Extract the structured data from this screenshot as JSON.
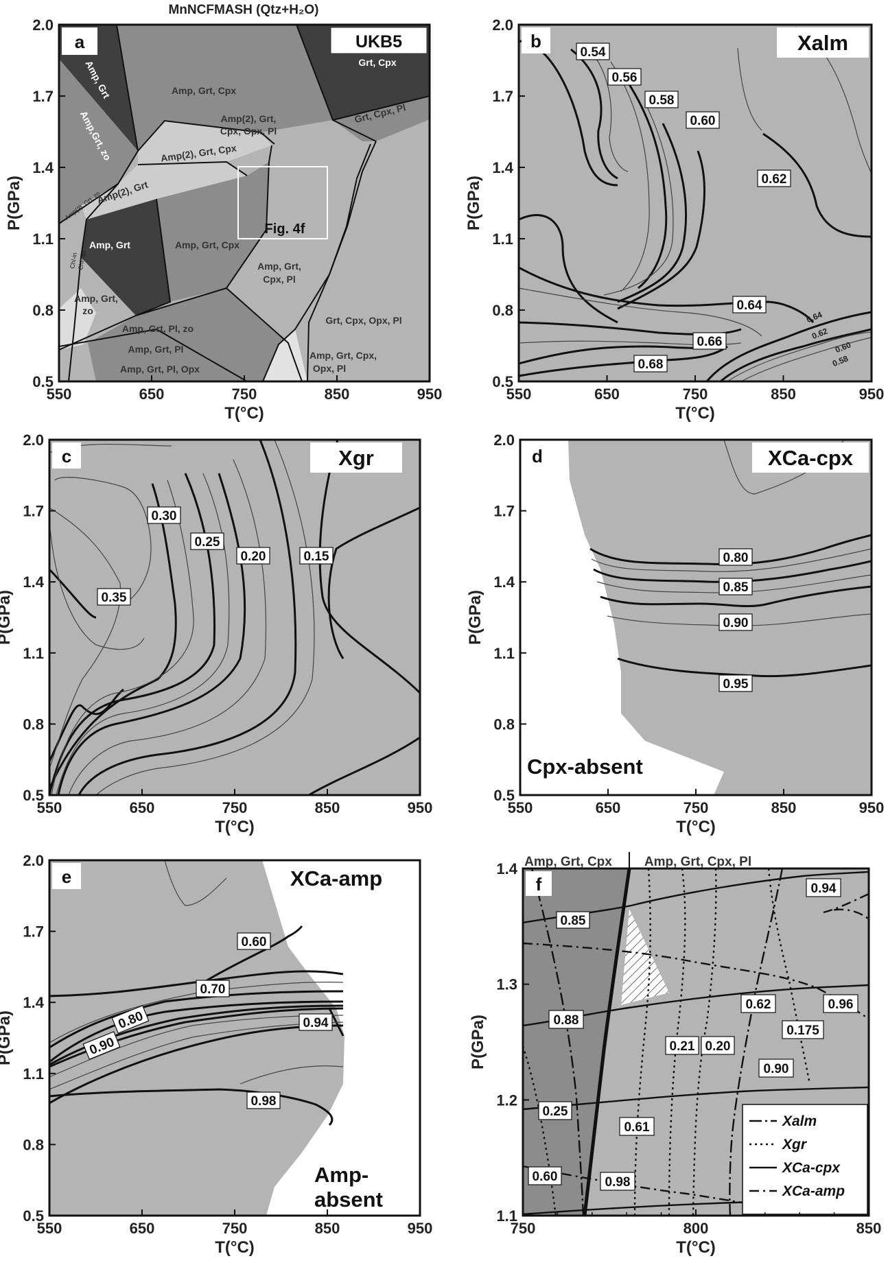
{
  "figure_title": "MnNCFMASH (Qtz+H₂O)",
  "chart_data": [
    {
      "panel": "a",
      "type": "phase diagram",
      "title": "UKB5",
      "xlabel": "T(°C)",
      "ylabel": "P(GPa)",
      "xlim": [
        550,
        950
      ],
      "ylim": [
        0.5,
        2.0
      ],
      "xticks": [
        "550",
        "650",
        "750",
        "850",
        "950"
      ],
      "yticks": [
        "2.0",
        "1.7",
        "1.4",
        "1.1",
        "0.8",
        "0.5"
      ],
      "fields": [
        {
          "label": "Amp, Grt",
          "shade": "dark",
          "lines": [
            "Amp, Grt"
          ]
        },
        {
          "label": "Amp,Grt, zo",
          "shade": "medium",
          "lines": [
            "Amp,Grt, zo"
          ]
        },
        {
          "label": "Amp, Grt, Cpx",
          "shade": "medium",
          "lines": [
            "Amp, Grt, Cpx"
          ]
        },
        {
          "label": "Grt, Cpx",
          "shade": "dark",
          "lines": [
            "Grt, Cpx"
          ]
        },
        {
          "label": "Amp(2), Grt, Cpx, Opx, Pl",
          "shade": "light",
          "lines": [
            "Amp(2), Grt,",
            "Cpx, Opx, Pl"
          ]
        },
        {
          "label": "Grt, Cpx, Pl",
          "shade": "medium",
          "lines": [
            "Grt, Cpx, Pl"
          ]
        },
        {
          "label": "Amp(2), Grt, Cpx",
          "shade": "pale",
          "lines": [
            "Amp(2), Grt, Cpx"
          ]
        },
        {
          "label": "Amp(2), Grt",
          "shade": "pale",
          "lines": [
            "Amp(2), Grt"
          ]
        },
        {
          "label": "Amp(2), Grt, zo",
          "shade": "pale",
          "lines": [
            "Amp(2), Grt, zo"
          ]
        },
        {
          "label": "Amp, Grt",
          "shade": "dark",
          "lines": [
            "Amp, Grt"
          ]
        },
        {
          "label": "Amp, Grt, Cpx",
          "shade": "medium",
          "lines": [
            "Amp, Grt, Cpx"
          ]
        },
        {
          "label": "Amp, Grt, Cpx, Pl",
          "shade": "light",
          "lines": [
            "Amp, Grt,",
            "Cpx, Pl"
          ]
        },
        {
          "label": "Grt, Cpx, Opx, Pl",
          "shade": "light",
          "lines": [
            "Grt, Cpx, Opx, Pl"
          ]
        },
        {
          "label": "Amp, Grt, zo",
          "shade": "light",
          "lines": [
            "Amp, Grt,",
            "zo"
          ]
        },
        {
          "label": "Amp, Grt, Pl, zo",
          "shade": "light",
          "lines": [
            "Amp, Grt, Pl, zo"
          ]
        },
        {
          "label": "Amp, Grt, Pl",
          "shade": "medium",
          "lines": [
            "Amp, Grt, Pl"
          ]
        },
        {
          "label": "Amp, Grt, Pl, Opx",
          "shade": "medium",
          "lines": [
            "Amp, Grt, Pl, Opx"
          ]
        },
        {
          "label": "Amp, Grt, Cpx, Opx, Pl",
          "shade": "pale",
          "lines": [
            "Amp, Grt, Cpx,",
            "Opx, Pl"
          ]
        }
      ],
      "reaction_labels": [
        "Chl-in",
        "Chl-out"
      ],
      "inset_label": "Fig. 4f",
      "inset_region": {
        "T": [
          765,
          860
        ],
        "P": [
          1.12,
          1.51
        ]
      }
    },
    {
      "panel": "b",
      "type": "contour",
      "title": "Xalm",
      "xlabel": "T(°C)",
      "ylabel": "P(GPa)",
      "xlim": [
        550,
        950
      ],
      "ylim": [
        0.5,
        2.0
      ],
      "contour_labels": [
        {
          "value": "0.54",
          "T": 642,
          "P": 1.87
        },
        {
          "value": "0.56",
          "T": 677,
          "P": 1.8
        },
        {
          "value": "0.58",
          "T": 718,
          "P": 1.72
        },
        {
          "value": "0.60",
          "T": 777,
          "P": 1.62
        },
        {
          "value": "0.62",
          "T": 843,
          "P": 1.4
        },
        {
          "value": "0.64",
          "T": 836,
          "P": 0.83
        },
        {
          "value": "0.66",
          "T": 758,
          "P": 0.67
        },
        {
          "value": "0.68",
          "T": 700,
          "P": 0.57
        },
        {
          "value": "0.64",
          "T": 905,
          "P": 0.76
        },
        {
          "value": "0.62",
          "T": 915,
          "P": 0.7
        },
        {
          "value": "0.60",
          "T": 927,
          "P": 0.63
        },
        {
          "value": "0.58",
          "T": 935,
          "P": 0.57
        }
      ]
    },
    {
      "panel": "c",
      "type": "contour",
      "title": "Xgr",
      "xlabel": "T(°C)",
      "ylabel": "P(GPa)",
      "xlim": [
        550,
        950
      ],
      "ylim": [
        0.5,
        2.0
      ],
      "contour_labels": [
        {
          "value": "0.30",
          "T": 676,
          "P": 1.61
        },
        {
          "value": "0.25",
          "T": 717,
          "P": 1.57
        },
        {
          "value": "0.20",
          "T": 770,
          "P": 1.53
        },
        {
          "value": "0.15",
          "T": 840,
          "P": 1.53
        },
        {
          "value": "0.35",
          "T": 615,
          "P": 1.38
        }
      ]
    },
    {
      "panel": "d",
      "type": "contour",
      "title": "XCa-cpx",
      "xlabel": "T(°C)",
      "ylabel": "P(GPa)",
      "xlim": [
        550,
        950
      ],
      "ylim": [
        0.5,
        2.0
      ],
      "absent_region_label": "Cpx-absent",
      "contour_labels": [
        {
          "value": "0.80",
          "T": 817,
          "P": 1.52
        },
        {
          "value": "0.85",
          "T": 817,
          "P": 1.41
        },
        {
          "value": "0.90",
          "T": 817,
          "P": 1.28
        },
        {
          "value": "0.95",
          "T": 817,
          "P": 0.98
        }
      ]
    },
    {
      "panel": "e",
      "type": "contour",
      "title": "XCa-amp",
      "xlabel": "T(°C)",
      "ylabel": "P(GPa)",
      "xlim": [
        550,
        950
      ],
      "ylim": [
        0.5,
        2.0
      ],
      "absent_region_label": [
        "Amp-",
        "absent"
      ],
      "contour_labels": [
        {
          "value": "0.60",
          "T": 770,
          "P": 1.63
        },
        {
          "value": "0.70",
          "T": 728,
          "P": 1.46
        },
        {
          "value": "0.80",
          "T": 646,
          "P": 1.34
        },
        {
          "value": "0.90",
          "T": 593,
          "P": 1.23
        },
        {
          "value": "0.94",
          "T": 847,
          "P": 1.32
        },
        {
          "value": "0.98",
          "T": 800,
          "P": 1.1
        }
      ]
    },
    {
      "panel": "f",
      "type": "isopleth overlay",
      "xlabel": "T(°C)",
      "ylabel": "P(GPa)",
      "xlim": [
        750,
        850
      ],
      "ylim": [
        1.1,
        1.4
      ],
      "xticks": [
        "750",
        "800",
        "850"
      ],
      "yticks": [
        "1.4",
        "1.3",
        "1.2",
        "1.1"
      ],
      "top_field_labels": [
        "Amp, Grt, Cpx",
        "Amp, Grt, Cpx, Pl"
      ],
      "legend": [
        "Xalm",
        "Xgr",
        "XCa-cpx",
        "XCa-amp"
      ],
      "legend_position": "bottom-right",
      "contour_labels": [
        {
          "value": "0.85",
          "T": 773.5,
          "P": 1.354,
          "series": "XCa-cpx"
        },
        {
          "value": "0.94",
          "T": 840,
          "P": 1.387,
          "series": "XCa-amp"
        },
        {
          "value": "0.88",
          "T": 762,
          "P": 1.264,
          "series": "XCa-cpx"
        },
        {
          "value": "0.62",
          "T": 820,
          "P": 1.279,
          "series": "Xalm"
        },
        {
          "value": "0.96",
          "T": 839.5,
          "P": 1.278,
          "series": "XCa-amp"
        },
        {
          "value": "0.175",
          "T": 829,
          "P": 1.256,
          "series": "Xgr"
        },
        {
          "value": "0.21",
          "T": 796.5,
          "P": 1.238,
          "series": "Xgr"
        },
        {
          "value": "0.20",
          "T": 805.5,
          "P": 1.238,
          "series": "Xgr"
        },
        {
          "value": "0.90",
          "T": 822,
          "P": 1.224,
          "series": "XCa-cpx"
        },
        {
          "value": "0.25",
          "T": 760,
          "P": 1.187,
          "series": "Xgr"
        },
        {
          "value": "0.61",
          "T": 786,
          "P": 1.168,
          "series": "Xalm"
        },
        {
          "value": "0.60",
          "T": 757,
          "P": 1.126,
          "series": "XCa-amp"
        },
        {
          "value": "0.98",
          "T": 779,
          "P": 1.121,
          "series": "XCa-amp"
        }
      ]
    }
  ]
}
